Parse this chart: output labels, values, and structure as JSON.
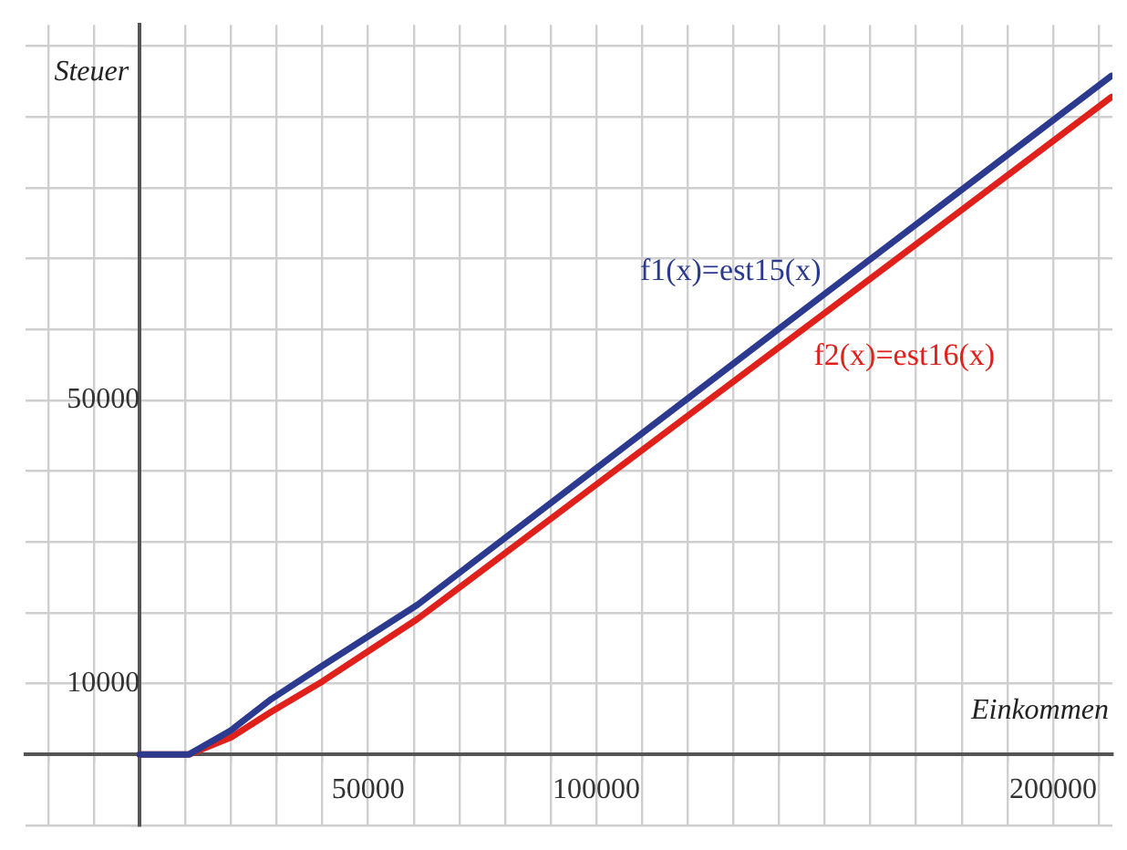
{
  "chart_data": {
    "type": "line",
    "xlabel": "Einkommen",
    "ylabel": "Steuer",
    "x": [
      0,
      10800,
      20000,
      28800,
      40000,
      60800,
      100000,
      150000,
      212800
    ],
    "series": [
      {
        "name": "f1(x)=est15(x)",
        "color": "#2b3a8f",
        "values": [
          0,
          0,
          3400,
          7800,
          12500,
          21100,
          40400,
          65000,
          95800
        ]
      },
      {
        "name": "f2(x)=est16(x)",
        "color": "#e0201b",
        "values": [
          0,
          0,
          2400,
          6000,
          10300,
          19100,
          38100,
          62300,
          92800
        ]
      }
    ],
    "xlim": [
      -25000,
      213000
    ],
    "ylim": [
      -10000,
      103000
    ],
    "xticks": [
      {
        "value": -20000,
        "label": null
      },
      {
        "value": -10000,
        "label": null
      },
      {
        "value": 10000,
        "label": null
      },
      {
        "value": 20000,
        "label": null
      },
      {
        "value": 30000,
        "label": null
      },
      {
        "value": 40000,
        "label": null
      },
      50000,
      {
        "value": 60000,
        "label": null
      },
      {
        "value": 70000,
        "label": null
      },
      {
        "value": 80000,
        "label": null
      },
      {
        "value": 90000,
        "label": null
      },
      100000,
      {
        "value": 110000,
        "label": null
      },
      {
        "value": 120000,
        "label": null
      },
      {
        "value": 130000,
        "label": null
      },
      {
        "value": 140000,
        "label": null
      },
      {
        "value": 150000,
        "label": null
      },
      {
        "value": 160000,
        "label": null
      },
      {
        "value": 170000,
        "label": null
      },
      {
        "value": 180000,
        "label": null
      },
      {
        "value": 190000,
        "label": null
      },
      200000,
      {
        "value": 210000,
        "label": null
      }
    ],
    "yticks": [
      {
        "value": -10000,
        "label": null
      },
      10000,
      {
        "value": 20000,
        "label": null
      },
      {
        "value": 30000,
        "label": null
      },
      {
        "value": 40000,
        "label": null
      },
      50000,
      {
        "value": 60000,
        "label": null
      },
      {
        "value": 70000,
        "label": null
      },
      {
        "value": 80000,
        "label": null
      },
      {
        "value": 90000,
        "label": null
      },
      {
        "value": 100000,
        "label": null
      }
    ],
    "grid": true,
    "marker": "none",
    "line_style": "solid",
    "legend": false
  }
}
